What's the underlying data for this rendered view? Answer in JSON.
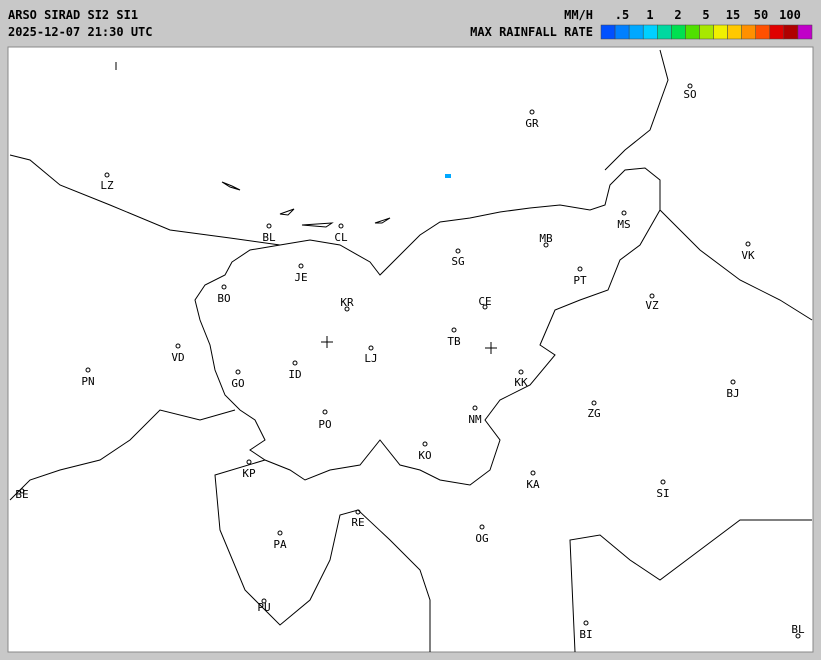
{
  "header": {
    "title": "ARSO SIRAD SI2 SI1",
    "timestamp": "2025-12-07 21:30 UTC",
    "unit": "MM/H",
    "legend_title": "MAX RAINFALL RATE"
  },
  "legend": {
    "ticks": [
      ".5",
      "1",
      "2",
      "5",
      "15",
      "50",
      "100"
    ],
    "colors": [
      "#0050ff",
      "#0080ff",
      "#00a8ff",
      "#00d0ff",
      "#00d8a0",
      "#00e050",
      "#50e000",
      "#a8e800",
      "#f0f000",
      "#ffc800",
      "#ff9000",
      "#ff5000",
      "#e00000",
      "#b00000",
      "#c000c8"
    ]
  },
  "cities": [
    "SO",
    "GR",
    "LZ",
    "MS",
    "BL",
    "CL",
    "MB",
    "VK",
    "SG",
    "JE",
    "PT",
    "BO",
    "KR",
    "CE",
    "VZ",
    "TB",
    "VD",
    "LJ",
    "ID",
    "PN",
    "GO",
    "KK",
    "BJ",
    "ZG",
    "NM",
    "PO",
    "KO",
    "KP",
    "KA",
    "SI",
    "BE",
    "RE",
    "OG",
    "PA",
    "PU",
    "BI",
    "BL"
  ]
}
